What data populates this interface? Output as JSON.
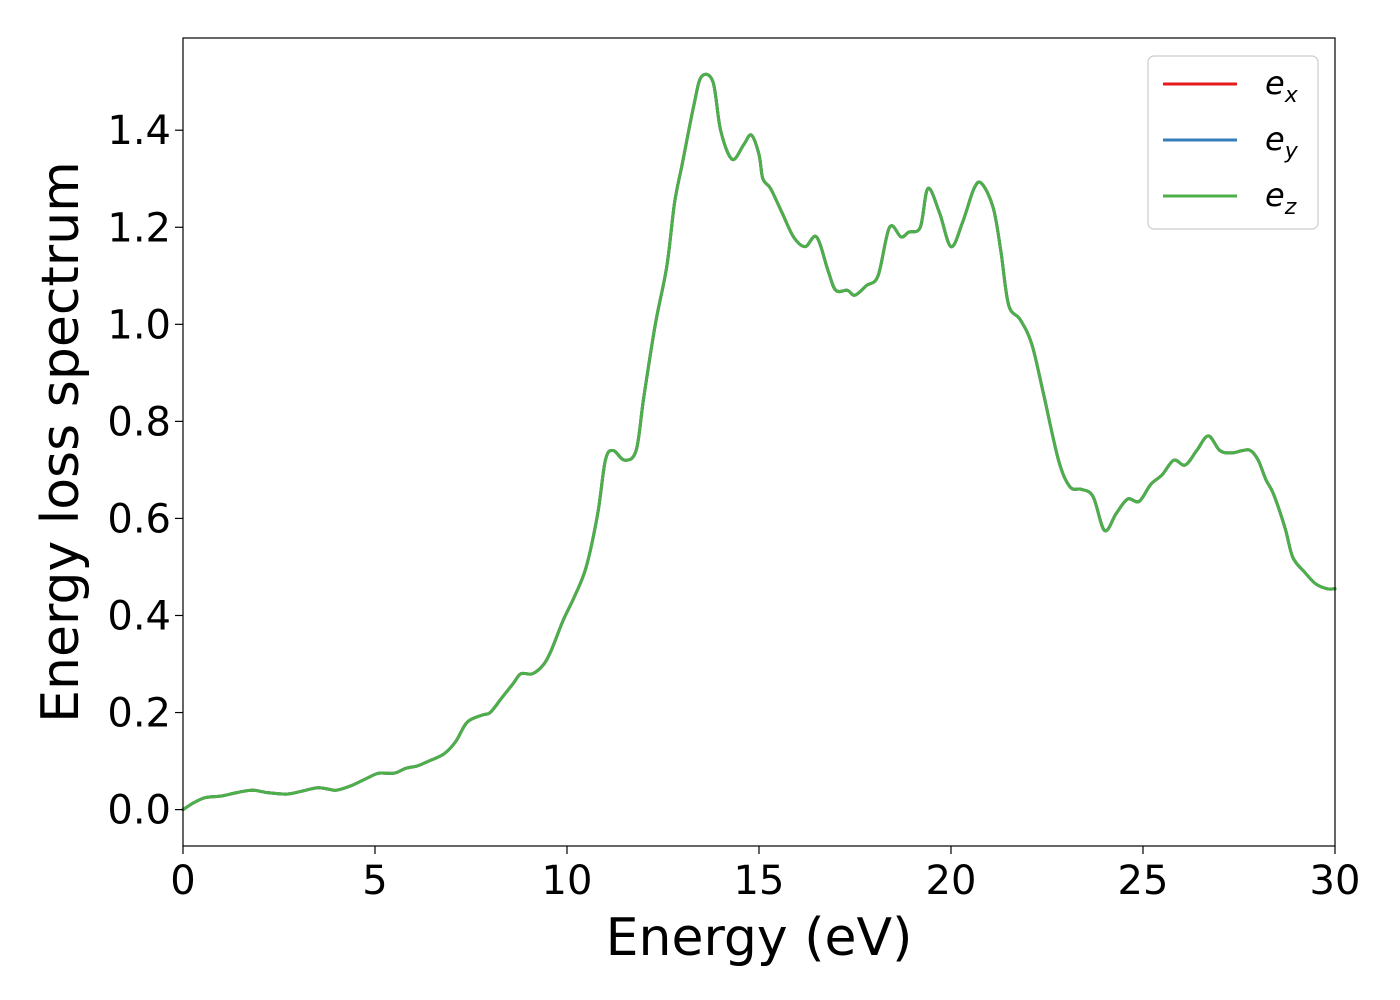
{
  "chart_data": {
    "type": "line",
    "title": "",
    "xlabel": "Energy (eV)",
    "ylabel": "Energy loss spectrum",
    "xlim": [
      0,
      30
    ],
    "ylim": [
      -0.075,
      1.59
    ],
    "xticks": [
      "0",
      "5",
      "10",
      "15",
      "20",
      "25",
      "30"
    ],
    "yticks": [
      "0.0",
      "0.2",
      "0.4",
      "0.6",
      "0.8",
      "1.0",
      "1.2",
      "1.4"
    ],
    "xtick_values": [
      0,
      5,
      10,
      15,
      20,
      25,
      30
    ],
    "ytick_values": [
      0.0,
      0.2,
      0.4,
      0.6,
      0.8,
      1.0,
      1.2,
      1.4
    ],
    "grid": false,
    "legend_position": "top-right",
    "x": [
      0.0,
      0.3,
      0.6,
      1.0,
      1.4,
      1.8,
      2.2,
      2.7,
      3.1,
      3.5,
      3.8,
      4.0,
      4.4,
      4.8,
      5.1,
      5.5,
      5.8,
      6.1,
      6.4,
      6.8,
      7.1,
      7.4,
      7.8,
      8.0,
      8.3,
      8.6,
      8.8,
      9.1,
      9.4,
      9.6,
      9.9,
      10.2,
      10.5,
      10.8,
      11.0,
      11.2,
      11.5,
      11.8,
      12.0,
      12.3,
      12.6,
      12.8,
      13.0,
      13.3,
      13.5,
      13.8,
      14.0,
      14.3,
      14.6,
      14.8,
      15.0,
      15.1,
      15.3,
      15.6,
      15.9,
      16.2,
      16.5,
      16.8,
      17.0,
      17.3,
      17.5,
      17.8,
      18.1,
      18.4,
      18.7,
      18.9,
      19.2,
      19.4,
      19.7,
      20.0,
      20.3,
      20.6,
      20.8,
      21.1,
      21.3,
      21.5,
      21.8,
      22.1,
      22.4,
      22.8,
      23.1,
      23.4,
      23.7,
      24.0,
      24.3,
      24.6,
      24.9,
      25.2,
      25.5,
      25.8,
      26.1,
      26.4,
      26.7,
      27.0,
      27.3,
      27.6,
      27.8,
      28.0,
      28.2,
      28.4,
      28.7,
      28.9,
      29.2,
      29.5,
      29.8,
      30.0
    ],
    "series": [
      {
        "name": "e_x",
        "color": "#e41a1c",
        "values": [
          0.0,
          0.015,
          0.025,
          0.028,
          0.035,
          0.04,
          0.035,
          0.032,
          0.038,
          0.045,
          0.042,
          0.04,
          0.05,
          0.065,
          0.075,
          0.075,
          0.085,
          0.09,
          0.1,
          0.115,
          0.14,
          0.18,
          0.195,
          0.2,
          0.23,
          0.26,
          0.28,
          0.28,
          0.3,
          0.33,
          0.39,
          0.44,
          0.5,
          0.61,
          0.72,
          0.74,
          0.72,
          0.74,
          0.85,
          1.0,
          1.12,
          1.25,
          1.33,
          1.45,
          1.51,
          1.5,
          1.4,
          1.34,
          1.37,
          1.39,
          1.35,
          1.3,
          1.28,
          1.23,
          1.18,
          1.16,
          1.18,
          1.11,
          1.07,
          1.07,
          1.06,
          1.08,
          1.1,
          1.2,
          1.18,
          1.19,
          1.2,
          1.28,
          1.23,
          1.16,
          1.21,
          1.28,
          1.29,
          1.24,
          1.15,
          1.04,
          1.01,
          0.96,
          0.86,
          0.72,
          0.665,
          0.66,
          0.645,
          0.575,
          0.61,
          0.64,
          0.635,
          0.67,
          0.69,
          0.72,
          0.71,
          0.74,
          0.77,
          0.74,
          0.735,
          0.74,
          0.74,
          0.72,
          0.68,
          0.65,
          0.58,
          0.52,
          0.49,
          0.465,
          0.455,
          0.455
        ]
      },
      {
        "name": "e_y",
        "color": "#377eb8",
        "values": [
          0.0,
          0.015,
          0.025,
          0.028,
          0.035,
          0.04,
          0.035,
          0.032,
          0.038,
          0.045,
          0.042,
          0.04,
          0.05,
          0.065,
          0.075,
          0.075,
          0.085,
          0.09,
          0.1,
          0.115,
          0.14,
          0.18,
          0.195,
          0.2,
          0.23,
          0.26,
          0.28,
          0.28,
          0.3,
          0.33,
          0.39,
          0.44,
          0.5,
          0.61,
          0.72,
          0.74,
          0.72,
          0.74,
          0.85,
          1.0,
          1.12,
          1.25,
          1.33,
          1.45,
          1.51,
          1.5,
          1.4,
          1.34,
          1.37,
          1.39,
          1.35,
          1.3,
          1.28,
          1.23,
          1.18,
          1.16,
          1.18,
          1.11,
          1.07,
          1.07,
          1.06,
          1.08,
          1.1,
          1.2,
          1.18,
          1.19,
          1.2,
          1.28,
          1.23,
          1.16,
          1.21,
          1.28,
          1.29,
          1.24,
          1.15,
          1.04,
          1.01,
          0.96,
          0.86,
          0.72,
          0.665,
          0.66,
          0.645,
          0.575,
          0.61,
          0.64,
          0.635,
          0.67,
          0.69,
          0.72,
          0.71,
          0.74,
          0.77,
          0.74,
          0.735,
          0.74,
          0.74,
          0.72,
          0.68,
          0.65,
          0.58,
          0.52,
          0.49,
          0.465,
          0.455,
          0.455
        ]
      },
      {
        "name": "e_z",
        "color": "#4daf4a",
        "values": [
          0.0,
          0.015,
          0.025,
          0.028,
          0.035,
          0.04,
          0.035,
          0.032,
          0.038,
          0.045,
          0.042,
          0.04,
          0.05,
          0.065,
          0.075,
          0.075,
          0.085,
          0.09,
          0.1,
          0.115,
          0.14,
          0.18,
          0.195,
          0.2,
          0.23,
          0.26,
          0.28,
          0.28,
          0.3,
          0.33,
          0.39,
          0.44,
          0.5,
          0.61,
          0.72,
          0.74,
          0.72,
          0.74,
          0.85,
          1.0,
          1.12,
          1.25,
          1.33,
          1.45,
          1.51,
          1.5,
          1.4,
          1.34,
          1.37,
          1.39,
          1.35,
          1.3,
          1.28,
          1.23,
          1.18,
          1.16,
          1.18,
          1.11,
          1.07,
          1.07,
          1.06,
          1.08,
          1.1,
          1.2,
          1.18,
          1.19,
          1.2,
          1.28,
          1.23,
          1.16,
          1.21,
          1.28,
          1.29,
          1.24,
          1.15,
          1.04,
          1.01,
          0.96,
          0.86,
          0.72,
          0.665,
          0.66,
          0.645,
          0.575,
          0.61,
          0.64,
          0.635,
          0.67,
          0.69,
          0.72,
          0.71,
          0.74,
          0.77,
          0.74,
          0.735,
          0.74,
          0.74,
          0.72,
          0.68,
          0.65,
          0.58,
          0.52,
          0.49,
          0.465,
          0.455,
          0.455
        ]
      }
    ],
    "legend": [
      {
        "base": "e",
        "sub": "x"
      },
      {
        "base": "e",
        "sub": "y"
      },
      {
        "base": "e",
        "sub": "z"
      }
    ]
  }
}
